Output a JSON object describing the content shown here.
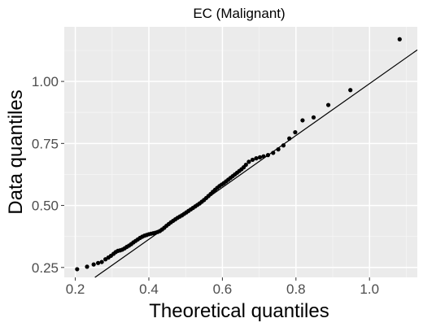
{
  "chart_data": {
    "type": "scatter",
    "title": "EC (Malignant)",
    "xlabel": "Theoretical quantiles",
    "ylabel": "Data quantiles",
    "xlim": [
      0.17,
      1.13
    ],
    "ylim": [
      0.21,
      1.22
    ],
    "x_ticks": [
      0.2,
      0.4,
      0.6,
      0.8,
      1.0
    ],
    "x_tick_labels": [
      "0.2",
      "0.4",
      "0.6",
      "0.8",
      "1.0"
    ],
    "y_ticks": [
      0.25,
      0.5,
      0.75,
      1.0
    ],
    "y_tick_labels": [
      "0.25",
      "0.50",
      "0.75",
      "1.00"
    ],
    "grid": true,
    "reference_line": {
      "slope": 1.046,
      "intercept": -0.055
    },
    "points": [
      [
        0.205,
        0.243
      ],
      [
        0.232,
        0.253
      ],
      [
        0.25,
        0.262
      ],
      [
        0.262,
        0.268
      ],
      [
        0.272,
        0.272
      ],
      [
        0.282,
        0.283
      ],
      [
        0.29,
        0.29
      ],
      [
        0.297,
        0.297
      ],
      [
        0.304,
        0.305
      ],
      [
        0.31,
        0.312
      ],
      [
        0.316,
        0.317
      ],
      [
        0.322,
        0.319
      ],
      [
        0.328,
        0.322
      ],
      [
        0.334,
        0.327
      ],
      [
        0.34,
        0.333
      ],
      [
        0.346,
        0.338
      ],
      [
        0.352,
        0.344
      ],
      [
        0.358,
        0.351
      ],
      [
        0.364,
        0.357
      ],
      [
        0.37,
        0.363
      ],
      [
        0.376,
        0.369
      ],
      [
        0.382,
        0.374
      ],
      [
        0.388,
        0.378
      ],
      [
        0.394,
        0.381
      ],
      [
        0.4,
        0.384
      ],
      [
        0.406,
        0.386
      ],
      [
        0.412,
        0.388
      ],
      [
        0.418,
        0.39
      ],
      [
        0.424,
        0.393
      ],
      [
        0.43,
        0.397
      ],
      [
        0.436,
        0.403
      ],
      [
        0.442,
        0.41
      ],
      [
        0.448,
        0.418
      ],
      [
        0.454,
        0.425
      ],
      [
        0.46,
        0.432
      ],
      [
        0.466,
        0.438
      ],
      [
        0.472,
        0.444
      ],
      [
        0.478,
        0.45
      ],
      [
        0.484,
        0.455
      ],
      [
        0.49,
        0.46
      ],
      [
        0.496,
        0.466
      ],
      [
        0.502,
        0.472
      ],
      [
        0.508,
        0.478
      ],
      [
        0.514,
        0.484
      ],
      [
        0.52,
        0.49
      ],
      [
        0.526,
        0.496
      ],
      [
        0.532,
        0.502
      ],
      [
        0.538,
        0.508
      ],
      [
        0.544,
        0.515
      ],
      [
        0.55,
        0.522
      ],
      [
        0.556,
        0.53
      ],
      [
        0.562,
        0.538
      ],
      [
        0.568,
        0.546
      ],
      [
        0.574,
        0.555
      ],
      [
        0.58,
        0.563
      ],
      [
        0.586,
        0.571
      ],
      [
        0.592,
        0.578
      ],
      [
        0.598,
        0.584
      ],
      [
        0.604,
        0.59
      ],
      [
        0.61,
        0.597
      ],
      [
        0.616,
        0.604
      ],
      [
        0.622,
        0.611
      ],
      [
        0.628,
        0.618
      ],
      [
        0.634,
        0.625
      ],
      [
        0.64,
        0.632
      ],
      [
        0.646,
        0.639
      ],
      [
        0.652,
        0.646
      ],
      [
        0.658,
        0.654
      ],
      [
        0.664,
        0.664
      ],
      [
        0.672,
        0.676
      ],
      [
        0.682,
        0.684
      ],
      [
        0.692,
        0.69
      ],
      [
        0.702,
        0.694
      ],
      [
        0.712,
        0.698
      ],
      [
        0.724,
        0.703
      ],
      [
        0.738,
        0.712
      ],
      [
        0.752,
        0.726
      ],
      [
        0.766,
        0.742
      ],
      [
        0.782,
        0.77
      ],
      [
        0.798,
        0.795
      ],
      [
        0.818,
        0.843
      ],
      [
        0.848,
        0.855
      ],
      [
        0.888,
        0.905
      ],
      [
        0.948,
        0.965
      ],
      [
        1.082,
        1.17
      ]
    ]
  }
}
